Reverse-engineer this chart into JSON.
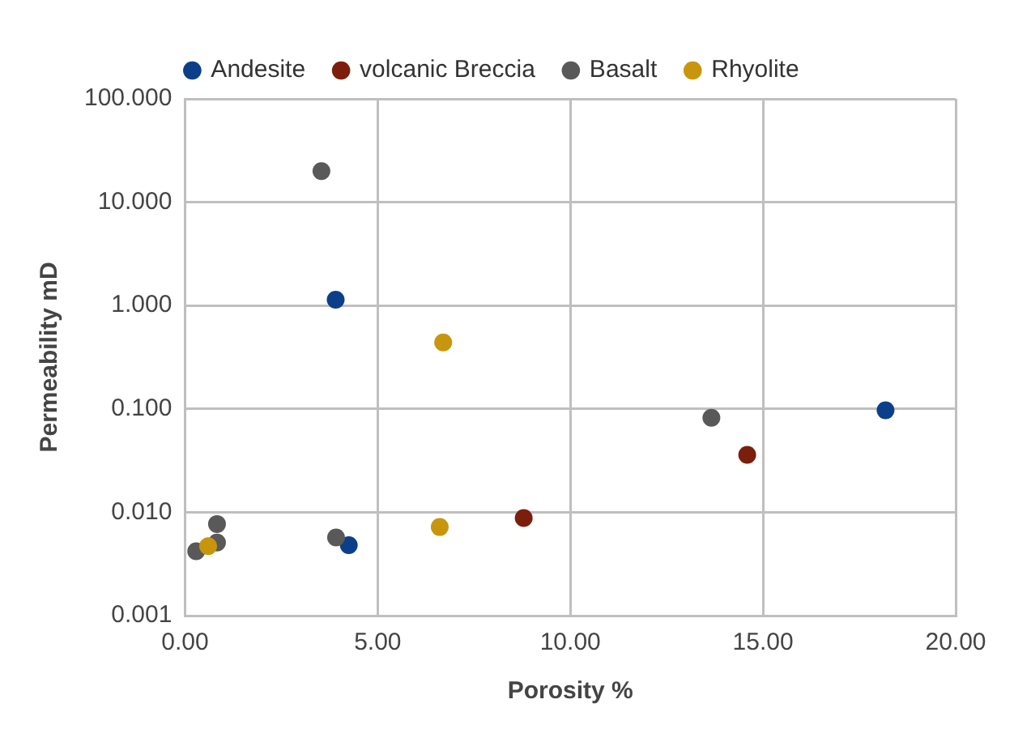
{
  "chart_data": {
    "type": "scatter",
    "xlabel": "Porosity %",
    "ylabel": "Permeability mD",
    "log": "y",
    "grid": true,
    "legend": "top",
    "marker": "circle",
    "xlim": [
      0,
      20
    ],
    "xticks": [
      {
        "value": 0,
        "label": "0.00"
      },
      {
        "value": 5,
        "label": "5.00"
      },
      {
        "value": 10,
        "label": "10.00"
      },
      {
        "value": 15,
        "label": "15.00"
      },
      {
        "value": 20,
        "label": "20.00"
      }
    ],
    "ylim": [
      0.001,
      100
    ],
    "yticks": [
      {
        "value": 0.001,
        "label": "0.001"
      },
      {
        "value": 0.01,
        "label": "0.010"
      },
      {
        "value": 0.1,
        "label": "0.100"
      },
      {
        "value": 1,
        "label": "1.000"
      },
      {
        "value": 10,
        "label": "10.000"
      },
      {
        "value": 100,
        "label": "100.000"
      }
    ],
    "series": [
      {
        "name": "Andesite",
        "color": "#0b3f8a",
        "x": [
          3.91,
          4.25,
          18.18
        ],
        "values": [
          1.14,
          0.0048,
          0.097
        ]
      },
      {
        "name": "volcanic Breccia",
        "color": "#7b1f0c",
        "x": [
          8.79,
          14.59
        ],
        "values": [
          0.0088,
          0.036
        ]
      },
      {
        "name": "Basalt",
        "color": "#595959",
        "x": [
          3.54,
          13.66,
          3.92,
          0.83,
          0.83,
          0.29
        ],
        "values": [
          20,
          0.082,
          0.0057,
          0.0077,
          0.0051,
          0.0042
        ]
      },
      {
        "name": "Rhyolite",
        "color": "#c8960c",
        "x": [
          6.7,
          6.61,
          0.6
        ],
        "values": [
          0.44,
          0.0072,
          0.0047
        ]
      }
    ]
  }
}
